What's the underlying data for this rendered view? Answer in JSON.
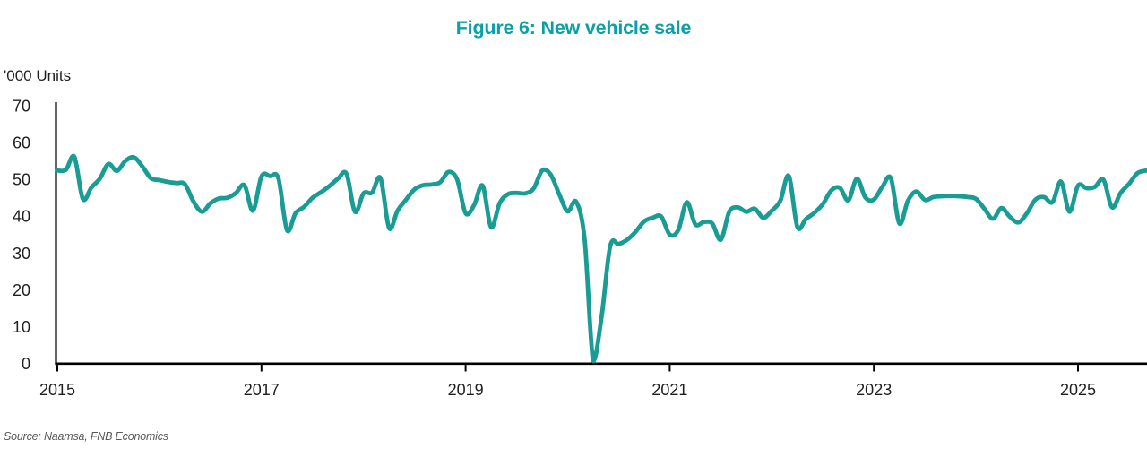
{
  "title": "Figure 6: New vehicle sale",
  "y_axis_label": "'000 Units",
  "source": "Source: Naamsa, FNB Economics",
  "colors": {
    "title_teal": "#0AA0A8",
    "line_teal": "#199C94",
    "axis_black": "#000000",
    "tick_label": "#1f1f1f",
    "source_gray": "#595959"
  },
  "chart_data": {
    "type": "line",
    "title": "Figure 6: New vehicle sale",
    "ylabel": "'000 Units",
    "ylim": [
      0,
      70
    ],
    "y_ticks": [
      0,
      10,
      20,
      30,
      40,
      50,
      60,
      70
    ],
    "x_tick_labels": [
      "2015",
      "2017",
      "2019",
      "2021",
      "2023",
      "2025"
    ],
    "grid": false,
    "legend_position": "none",
    "series": [
      {
        "name": "New vehicle sales ('000 units, monthly)",
        "start": "2015-01",
        "end": "2025-09",
        "frequency": "monthly",
        "values": [
          52.4,
          52.6,
          56.1,
          44.7,
          47.8,
          50.2,
          54.2,
          52.3,
          55.0,
          56.0,
          53.5,
          50.3,
          49.8,
          49.3,
          49.0,
          48.7,
          44.0,
          41.2,
          43.5,
          44.8,
          45.0,
          46.3,
          48.4,
          41.5,
          50.8,
          50.9,
          50.2,
          36.2,
          40.8,
          42.5,
          45.0,
          46.5,
          48.2,
          50.2,
          51.5,
          41.2,
          46.2,
          46.4,
          50.3,
          36.8,
          41.5,
          44.5,
          47.3,
          48.4,
          48.6,
          49.2,
          52.0,
          50.0,
          40.8,
          43.0,
          48.3,
          37.0,
          43.5,
          46.0,
          46.3,
          46.2,
          47.5,
          52.4,
          51.3,
          46.0,
          41.3,
          43.9,
          33.5,
          0.6,
          12.9,
          31.9,
          32.4,
          33.6,
          35.8,
          38.6,
          39.6,
          39.9,
          35.0,
          36.2,
          43.8,
          37.8,
          38.4,
          38.0,
          33.6,
          41.2,
          42.4,
          41.2,
          42.0,
          39.6,
          41.5,
          44.2,
          50.9,
          37.1,
          39.2,
          40.9,
          43.3,
          47.0,
          47.7,
          44.3,
          50.2,
          45.1,
          44.5,
          48.0,
          50.3,
          38.0,
          44.2,
          46.7,
          44.4,
          45.2,
          45.4,
          45.5,
          45.4,
          45.2,
          44.7,
          42.0,
          39.3,
          42.2,
          39.8,
          38.3,
          40.8,
          44.5,
          45.2,
          43.8,
          49.4,
          41.2,
          48.3,
          47.6,
          48.0,
          49.9,
          42.4,
          46.3,
          48.8,
          51.7,
          52.4
        ]
      }
    ]
  }
}
